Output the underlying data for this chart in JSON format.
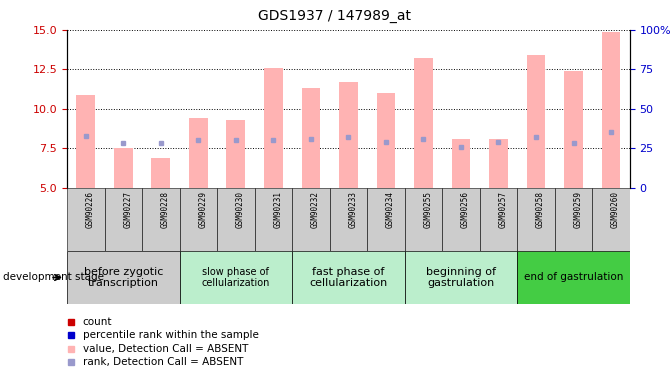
{
  "title": "GDS1937 / 147989_at",
  "samples": [
    "GSM90226",
    "GSM90227",
    "GSM90228",
    "GSM90229",
    "GSM90230",
    "GSM90231",
    "GSM90232",
    "GSM90233",
    "GSM90234",
    "GSM90255",
    "GSM90256",
    "GSM90257",
    "GSM90258",
    "GSM90259",
    "GSM90260"
  ],
  "bar_values": [
    10.9,
    7.5,
    6.9,
    9.4,
    9.3,
    12.6,
    11.3,
    11.7,
    11.0,
    13.2,
    8.1,
    8.1,
    13.4,
    12.4,
    14.9
  ],
  "rank_values": [
    8.3,
    7.8,
    7.8,
    8.0,
    8.0,
    8.0,
    8.1,
    8.2,
    7.9,
    8.1,
    7.6,
    7.9,
    8.2,
    7.8,
    8.5
  ],
  "ylim_left": [
    5,
    15
  ],
  "ylim_right": [
    0,
    100
  ],
  "yticks_left": [
    5,
    7.5,
    10,
    12.5,
    15
  ],
  "yticks_right": [
    0,
    25,
    50,
    75,
    100
  ],
  "bar_color": "#ffb3b3",
  "rank_color": "#9999cc",
  "ylabel_left_color": "#cc0000",
  "ylabel_right_color": "#0000cc",
  "sample_bg_color": "#cccccc",
  "stage_groups": [
    {
      "start": 0,
      "end": 3,
      "color": "#cccccc",
      "label": "before zygotic\ntranscription",
      "fontsize": 8
    },
    {
      "start": 3,
      "end": 6,
      "color": "#bbeecc",
      "label": "slow phase of\ncellularization",
      "fontsize": 7
    },
    {
      "start": 6,
      "end": 9,
      "color": "#bbeecc",
      "label": "fast phase of\ncellularization",
      "fontsize": 8
    },
    {
      "start": 9,
      "end": 12,
      "color": "#bbeecc",
      "label": "beginning of\ngastrulation",
      "fontsize": 8
    },
    {
      "start": 12,
      "end": 15,
      "color": "#44cc44",
      "label": "end of gastrulation",
      "fontsize": 7.5
    }
  ],
  "legend_items": [
    {
      "label": "count",
      "color": "#cc0000"
    },
    {
      "label": "percentile rank within the sample",
      "color": "#0000cc"
    },
    {
      "label": "value, Detection Call = ABSENT",
      "color": "#ffb3b3"
    },
    {
      "label": "rank, Detection Call = ABSENT",
      "color": "#9999cc"
    }
  ]
}
